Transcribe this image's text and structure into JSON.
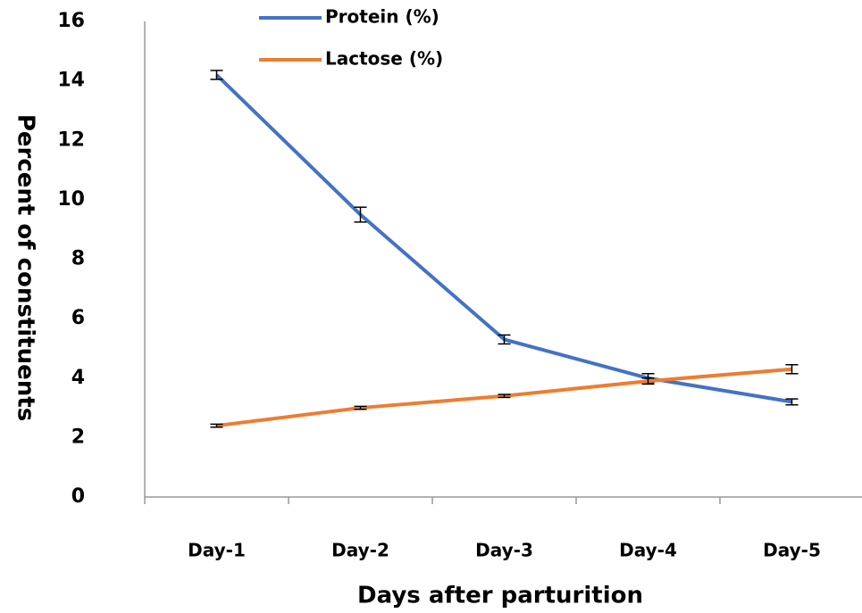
{
  "chart_data": {
    "type": "line",
    "x_label": "Days after parturition",
    "y_label": "Percent of constituents",
    "categories": [
      "Day-1",
      "Day-2",
      "Day-3",
      "Day-4",
      "Day-5"
    ],
    "series": [
      {
        "name": "Protein (%)",
        "color": "#4472c4",
        "values": [
          14.2,
          9.5,
          5.3,
          4.0,
          3.2
        ],
        "errors": [
          0.15,
          0.25,
          0.15,
          0.15,
          0.1
        ]
      },
      {
        "name": "Lactose (%)",
        "color": "#ed7d31",
        "values": [
          2.4,
          3.0,
          3.4,
          3.9,
          4.3
        ],
        "errors": [
          0.05,
          0.05,
          0.05,
          0.1,
          0.15
        ]
      }
    ],
    "ylim": [
      0,
      16
    ],
    "yticks": [
      0,
      2,
      4,
      6,
      8,
      10,
      12,
      14,
      16
    ],
    "grid": false,
    "legend": "top"
  }
}
